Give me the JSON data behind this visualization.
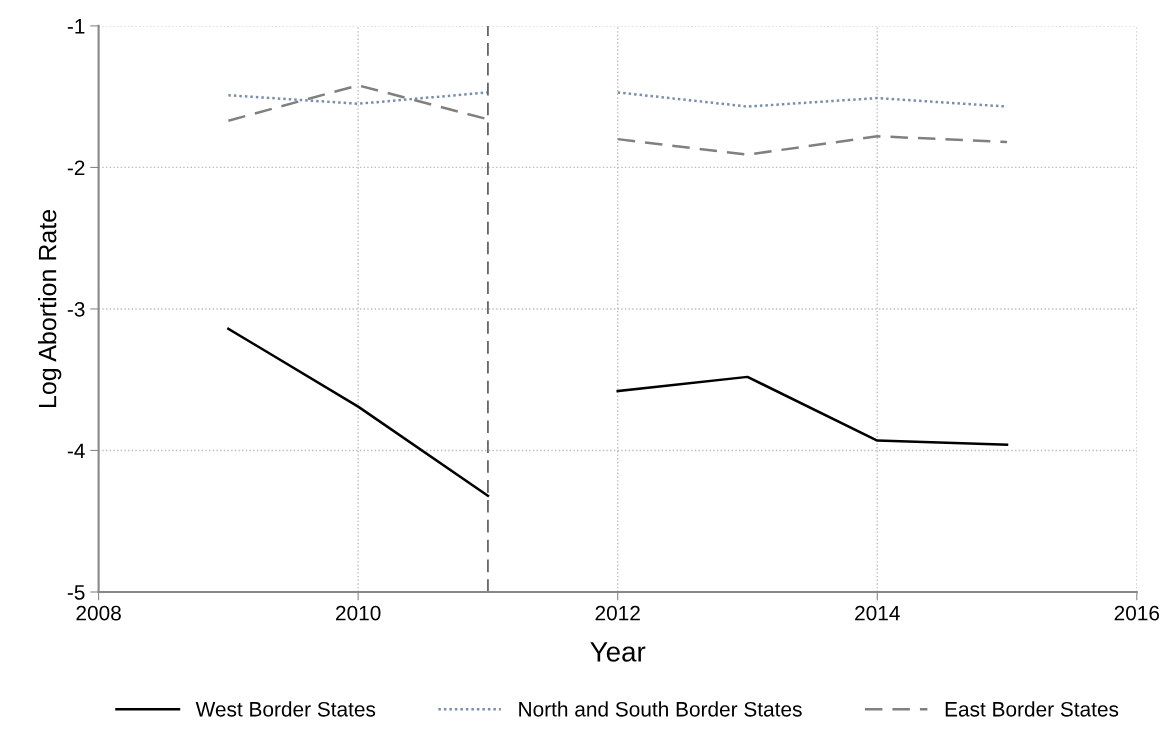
{
  "chart_data": {
    "type": "line",
    "xlabel": "Year",
    "ylabel": "Log Abortion Rate",
    "x": [
      2009,
      2010,
      2011
    ],
    "series": [
      {
        "name": "West Border States",
        "color": "#000000",
        "line_style": "solid",
        "values": [
          -3.14,
          -3.69,
          -4.32
        ]
      },
      {
        "name": "North and South Border States",
        "color": "#7a8fa6",
        "line_style": "dotted",
        "values": [
          -1.49,
          -1.55,
          -1.47
        ]
      },
      {
        "name": "East Border States",
        "color": "#808080",
        "line_style": "dashed",
        "values": [
          -1.67,
          -1.42,
          -1.66
        ]
      },
      {
        "color": "#000000",
        "line_style": "solid",
        "x": [
          2012,
          2013,
          2014,
          2015
        ],
        "values": [
          -3.58,
          -3.48,
          -3.93,
          -3.96
        ]
      },
      {
        "color": "#7a8fa6",
        "line_style": "dotted",
        "x": [
          2012,
          2013,
          2014,
          2015
        ],
        "values": [
          -1.47,
          -1.57,
          -1.51,
          -1.57
        ]
      },
      {
        "color": "#808080",
        "line_style": "dashed",
        "x": [
          2012,
          2013,
          2014,
          2015
        ],
        "values": [
          -1.8,
          -1.91,
          -1.78,
          -1.82
        ]
      }
    ],
    "xlim": [
      2008,
      2016
    ],
    "xticks": [
      2008,
      2010,
      2012,
      2014,
      2016
    ],
    "ylim": [
      -5,
      -1
    ],
    "yticks": [
      -5,
      -4,
      -3,
      -2,
      -1
    ],
    "ref_lines": [
      {
        "axis": "x",
        "value": 2011,
        "color": "#666666",
        "line_style": "dashed"
      }
    ],
    "grid": true,
    "legend": "bottom",
    "marker": "none"
  }
}
